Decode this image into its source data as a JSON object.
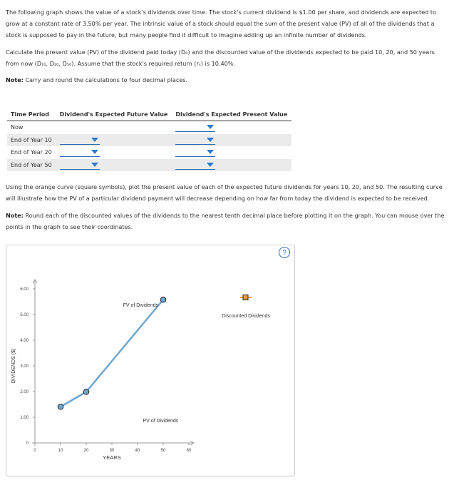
{
  "intro": "The following graph shows the value of a stock's dividends over time. The stock's current dividend is $1.00 per share, and dividends are expected to grow at a constant rate of 3.50% per year. The intrinsic value of a stock should equal the sum of the present value (PV) of all of the dividends that a stock is supposed to pay in the future, but many people find it difficult to imagine adding up an infinite number of dividends.",
  "task": "Calculate the present value (PV) of the dividend paid today (D₀) and the discounted value of the dividends expected to be paid 10, 20, and 50 years from now (D₁₀, D₂₀, D₅₀). Assume that the stock's required return (rₛ) is 10.40%.",
  "note1": {
    "label": "Note:",
    "text": "Carry and round the calculations to four decimal places."
  },
  "table": {
    "headers": [
      "Time Period",
      "Dividend's Expected Future Value",
      "Dividend's Expected Present Value"
    ],
    "rows": [
      "Now",
      "End of Year 10",
      "End of Year 20",
      "End of Year 50"
    ]
  },
  "task2": "Using the orange curve (square symbols), plot the present value of each of the expected future dividends for years 10, 20, and 50. The resulting curve will illustrate how the PV of a particular dividend payment will decrease depending on how far from today the dividend is expected to be received.",
  "note2": {
    "label": "Note:",
    "text": "Round each of the discounted values of the dividends to the nearest tenth decimal place before plotting it on the graph. You can mouse over the points in the graph to see their coordinates."
  },
  "help": "?",
  "chart_data": {
    "type": "line",
    "xlabel": "YEARS",
    "ylabel": "DIVIDENDS ($)",
    "xlim": [
      0,
      60
    ],
    "ylim": [
      0,
      6
    ],
    "xticks": [
      0,
      10,
      20,
      30,
      40,
      50,
      60
    ],
    "yticks": [
      0,
      {
        "value": 1,
        "label": "1.00"
      },
      {
        "value": 2,
        "label": "2.00"
      },
      {
        "value": 3,
        "label": "3.00"
      },
      {
        "value": 4,
        "label": "4.00"
      },
      {
        "value": 5,
        "label": "5.00"
      },
      {
        "value": 6,
        "label": "6.00"
      }
    ],
    "series": [
      {
        "name": "FV of Dividends",
        "color": "#6fa6cf",
        "x": [
          10,
          20,
          50
        ],
        "values": [
          1.41,
          1.99,
          5.58
        ]
      },
      {
        "name": "Discounted Dividends",
        "color": "#f39a3c",
        "x": [],
        "values": []
      }
    ],
    "annotations": [
      "PV of Dividends"
    ]
  }
}
